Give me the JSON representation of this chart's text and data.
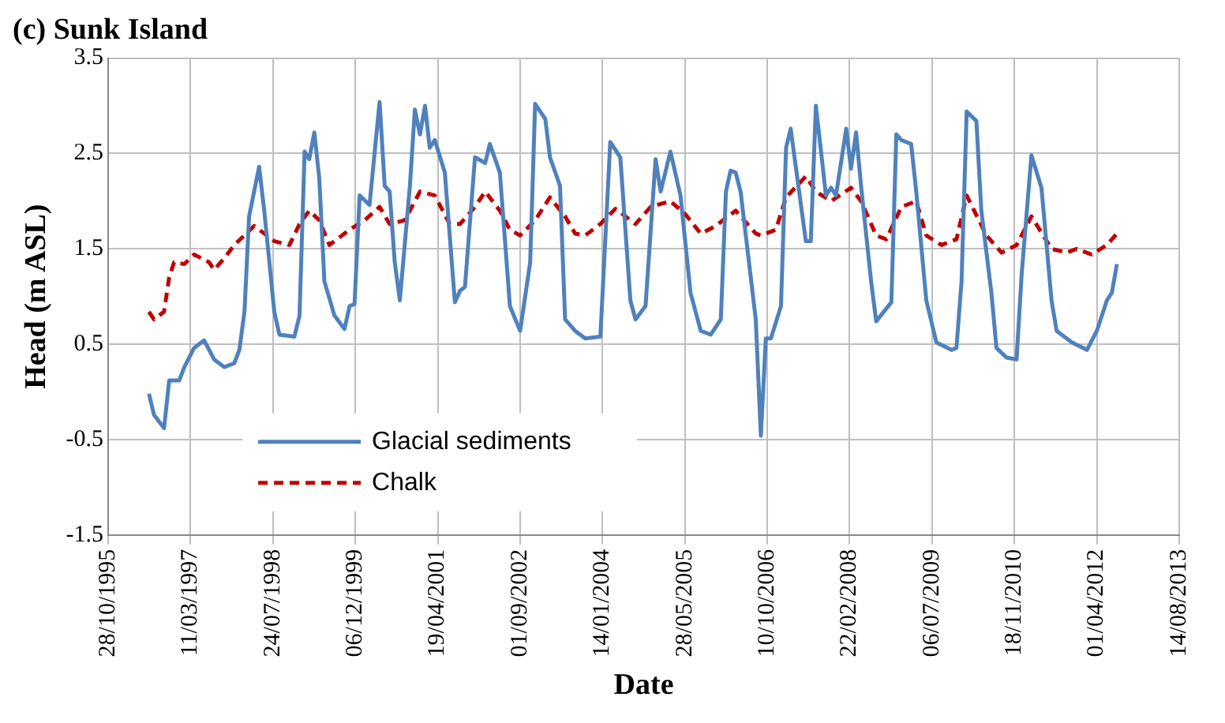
{
  "chart_data": {
    "type": "line",
    "title": "(c) Sunk Island",
    "xlabel": "Date",
    "ylabel": "Head (m ASL)",
    "xlim": [
      "1995-10-28",
      "2013-08-14"
    ],
    "xticks": [
      {
        "value": "1995-10-28",
        "label": "28/10/1995"
      },
      {
        "value": "1997-03-11",
        "label": "11/03/1997"
      },
      {
        "value": "1998-07-24",
        "label": "24/07/1998"
      },
      {
        "value": "1999-12-06",
        "label": "06/12/1999"
      },
      {
        "value": "2001-04-19",
        "label": "19/04/2001"
      },
      {
        "value": "2002-09-01",
        "label": "01/09/2002"
      },
      {
        "value": "2004-01-14",
        "label": "14/01/2004"
      },
      {
        "value": "2005-05-28",
        "label": "28/05/2005"
      },
      {
        "value": "2006-10-10",
        "label": "10/10/2006"
      },
      {
        "value": "2008-02-22",
        "label": "22/02/2008"
      },
      {
        "value": "2009-07-06",
        "label": "06/07/2009"
      },
      {
        "value": "2010-11-18",
        "label": "18/11/2010"
      },
      {
        "value": "2012-04-01",
        "label": "01/04/2012"
      },
      {
        "value": "2013-08-14",
        "label": "14/08/2013"
      }
    ],
    "ylim": [
      -1.5,
      3.5
    ],
    "yticks": [
      -1.5,
      -0.5,
      0.5,
      1.5,
      2.5,
      3.5
    ],
    "grid": true,
    "legend": "bottom left",
    "marker": "none",
    "series": [
      {
        "name": "Glacial sediments",
        "color": "#4f81bd",
        "line_style": "solid",
        "x": [
          "1996-07",
          "1996-08",
          "1996-10",
          "1996-11",
          "1997-01",
          "1997-02",
          "1997-04",
          "1997-06",
          "1997-08",
          "1997-10",
          "1997-12",
          "1998-01",
          "1998-02",
          "1998-03",
          "1998-05",
          "1998-06",
          "1998-08",
          "1998-09",
          "1998-12",
          "1999-01",
          "1999-02",
          "1999-03",
          "1999-04",
          "1999-05",
          "1999-06",
          "1999-08",
          "1999-10",
          "1999-11",
          "1999-12",
          "2000-01",
          "2000-03",
          "2000-05",
          "2000-06",
          "2000-07",
          "2000-08",
          "2000-09",
          "2000-11",
          "2000-12",
          "2001-01",
          "2001-02",
          "2001-03",
          "2001-04",
          "2001-06",
          "2001-08",
          "2001-09",
          "2001-10",
          "2001-12",
          "2002-02",
          "2002-03",
          "2002-05",
          "2002-07",
          "2002-09",
          "2002-11",
          "2002-12",
          "2003-02",
          "2003-03",
          "2003-05",
          "2003-06",
          "2003-08",
          "2003-10",
          "2004-01",
          "2004-03",
          "2004-05",
          "2004-07",
          "2004-08",
          "2004-10",
          "2004-12",
          "2005-01",
          "2005-03",
          "2005-05",
          "2005-07",
          "2005-09",
          "2005-11",
          "2006-01",
          "2006-02",
          "2006-03",
          "2006-04",
          "2006-05",
          "2006-08",
          "2006-09",
          "2006-10",
          "2006-11",
          "2007-01",
          "2007-02",
          "2007-03",
          "2007-04",
          "2007-06",
          "2007-07",
          "2007-08",
          "2007-10",
          "2007-11",
          "2007-12",
          "2008-02",
          "2008-03",
          "2008-04",
          "2008-05",
          "2008-07",
          "2008-08",
          "2008-11",
          "2008-12",
          "2009-01",
          "2009-03",
          "2009-04",
          "2009-06",
          "2009-08",
          "2009-11",
          "2009-12",
          "2010-01",
          "2010-02",
          "2010-04",
          "2010-05",
          "2010-07",
          "2010-08",
          "2010-10",
          "2010-12",
          "2011-01",
          "2011-03",
          "2011-05",
          "2011-07",
          "2011-08",
          "2011-11",
          "2012-02",
          "2012-04",
          "2012-06",
          "2012-07",
          "2012-08"
        ],
        "values": [
          -0.02,
          -0.24,
          -0.38,
          0.12,
          0.12,
          0.26,
          0.46,
          0.54,
          0.34,
          0.26,
          0.3,
          0.44,
          0.84,
          1.84,
          2.36,
          1.9,
          0.84,
          0.6,
          0.58,
          0.8,
          2.52,
          2.44,
          2.72,
          2.24,
          1.16,
          0.8,
          0.66,
          0.9,
          0.92,
          2.06,
          1.96,
          3.04,
          2.16,
          2.1,
          1.36,
          0.96,
          2.16,
          2.96,
          2.7,
          3.0,
          2.56,
          2.64,
          2.3,
          0.94,
          1.06,
          1.1,
          2.46,
          2.4,
          2.6,
          2.3,
          0.9,
          0.64,
          1.36,
          3.02,
          2.86,
          2.46,
          2.16,
          0.76,
          0.64,
          0.56,
          0.58,
          2.62,
          2.46,
          0.96,
          0.76,
          0.9,
          2.44,
          2.1,
          2.52,
          2.06,
          1.04,
          0.64,
          0.6,
          0.76,
          2.1,
          2.32,
          2.3,
          2.1,
          0.76,
          -0.46,
          0.56,
          0.56,
          0.9,
          2.56,
          2.76,
          2.36,
          1.58,
          1.58,
          3.0,
          2.06,
          2.14,
          2.06,
          2.76,
          2.34,
          2.72,
          2.16,
          1.16,
          0.74,
          0.94,
          2.7,
          2.64,
          2.6,
          2.1,
          0.96,
          0.52,
          0.44,
          0.46,
          1.16,
          2.94,
          2.84,
          1.9,
          1.04,
          0.46,
          0.36,
          0.34,
          1.24,
          2.48,
          2.14,
          0.96,
          0.64,
          0.52,
          0.44,
          0.64,
          0.96,
          1.04,
          1.34
        ]
      },
      {
        "name": "Chalk",
        "color": "#c00000",
        "line_style": "dashed",
        "x": [
          "1996-07",
          "1996-08",
          "1996-10",
          "1996-11",
          "1996-12",
          "1997-02",
          "1997-04",
          "1997-07",
          "1997-08",
          "1997-10",
          "1997-12",
          "1998-04",
          "1998-08",
          "1998-11",
          "1999-01",
          "1999-03",
          "1999-05",
          "1999-07",
          "1999-11",
          "2000-02",
          "2000-05",
          "2000-07",
          "2000-10",
          "2001-01",
          "2001-04",
          "2001-05",
          "2001-07",
          "2001-09",
          "2001-12",
          "2002-02",
          "2002-05",
          "2002-07",
          "2002-09",
          "2002-12",
          "2003-03",
          "2003-06",
          "2003-08",
          "2003-10",
          "2004-01",
          "2004-04",
          "2004-08",
          "2004-11",
          "2005-03",
          "2005-06",
          "2005-09",
          "2005-12",
          "2006-04",
          "2006-08",
          "2006-09",
          "2006-12",
          "2007-02",
          "2007-06",
          "2007-08",
          "2007-11",
          "2008-03",
          "2008-05",
          "2008-08",
          "2008-10",
          "2009-01",
          "2009-04",
          "2009-06",
          "2009-09",
          "2009-12",
          "2010-02",
          "2010-06",
          "2010-09",
          "2010-12",
          "2011-03",
          "2011-07",
          "2011-10",
          "2011-12",
          "2012-03",
          "2012-06",
          "2012-08"
        ],
        "values": [
          0.84,
          0.76,
          0.84,
          1.2,
          1.36,
          1.34,
          1.44,
          1.36,
          1.28,
          1.4,
          1.54,
          1.74,
          1.58,
          1.54,
          1.76,
          1.9,
          1.8,
          1.54,
          1.7,
          1.8,
          1.94,
          1.76,
          1.8,
          2.1,
          2.06,
          1.96,
          1.76,
          1.76,
          1.94,
          2.1,
          1.9,
          1.7,
          1.64,
          1.8,
          2.04,
          1.84,
          1.66,
          1.64,
          1.76,
          1.92,
          1.76,
          1.94,
          2.0,
          1.86,
          1.66,
          1.74,
          1.9,
          1.66,
          1.64,
          1.7,
          2.04,
          2.26,
          2.1,
          2.0,
          2.14,
          2.0,
          1.64,
          1.6,
          1.94,
          2.0,
          1.64,
          1.54,
          1.6,
          2.06,
          1.64,
          1.46,
          1.54,
          1.84,
          1.5,
          1.46,
          1.5,
          1.44,
          1.54,
          1.66
        ]
      }
    ]
  }
}
